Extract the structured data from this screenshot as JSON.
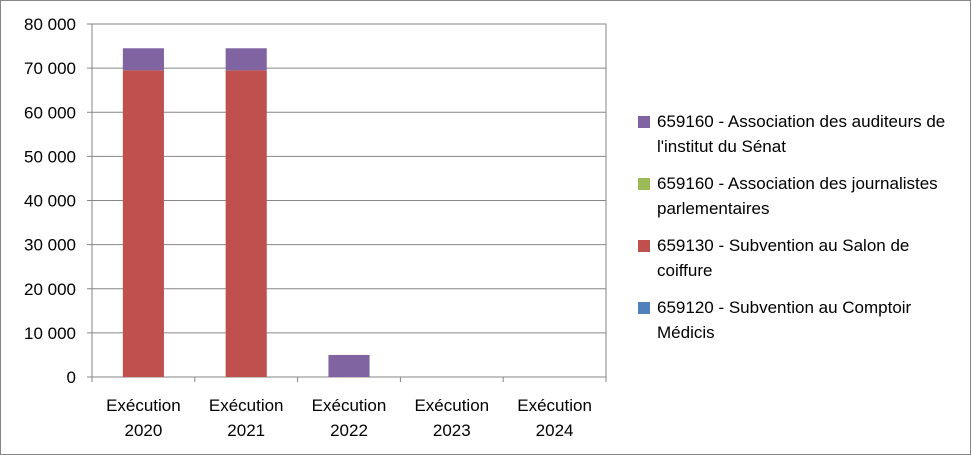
{
  "chart_data": {
    "type": "bar",
    "stacked": true,
    "categories": [
      "Exécution\n2020",
      "Exécution\n2021",
      "Exécution\n2022",
      "Exécution\n2023",
      "Exécution\n2024"
    ],
    "series": [
      {
        "name": "659120 - Subvention au Comptoir Médicis",
        "color": "#4F81BD",
        "values": [
          0,
          0,
          0,
          0,
          0
        ]
      },
      {
        "name": "659130 - Subvention au Salon de coiffure",
        "color": "#C0504D",
        "values": [
          69500,
          69500,
          0,
          0,
          0
        ]
      },
      {
        "name": "659160 - Association des journalistes parlementaires",
        "color": "#9BBB59",
        "values": [
          0,
          0,
          0,
          0,
          0
        ]
      },
      {
        "name": "659160 - Association des auditeurs de l'institut du Sénat",
        "color": "#8064A2",
        "values": [
          5000,
          5000,
          5000,
          0,
          0
        ]
      }
    ],
    "yticks": [
      "0",
      "10 000",
      "20 000",
      "30 000",
      "40 000",
      "50 000",
      "60 000",
      "70 000",
      "80 000"
    ],
    "ylim": [
      0,
      80000
    ],
    "grid": true,
    "legend_position": "right",
    "legend_order": [
      3,
      2,
      1,
      0
    ],
    "title": "",
    "xlabel": "",
    "ylabel": ""
  }
}
